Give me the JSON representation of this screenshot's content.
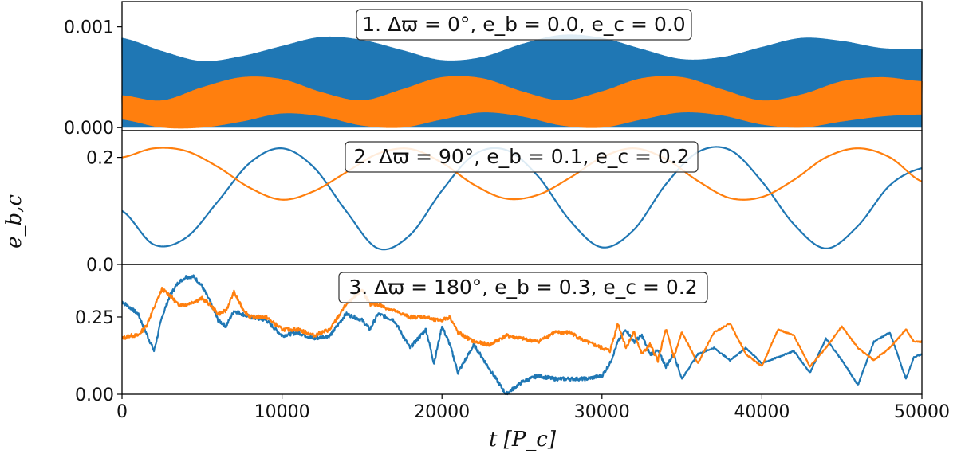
{
  "chart_data": {
    "type": "line",
    "xlabel": "t [P_c]",
    "ylabel": "e_b,c",
    "xlim": [
      0,
      50000
    ],
    "xticks": [
      "0",
      "10000",
      "20000",
      "30000",
      "40000",
      "50000"
    ],
    "series_colors": {
      "b": "#1f77b4",
      "c": "#ff7f0e"
    },
    "panels": [
      {
        "id": 1,
        "annotation": "1. Δϖ = 0°, e_b = 0.0, e_c = 0.0",
        "ylim": [
          -3e-05,
          0.00125
        ],
        "yticks": [
          {
            "value": 0.0,
            "label": "0.000"
          },
          {
            "value": 0.001,
            "label": "0.001"
          }
        ],
        "style": "band",
        "series": [
          {
            "key": "b",
            "color": "#1f77b4",
            "x": [
              0,
              2500,
              5000,
              7500,
              10000,
              12500,
              15000,
              17500,
              20000,
              22500,
              25000,
              27500,
              30000,
              32500,
              35000,
              37500,
              40000,
              42500,
              45000,
              47500,
              50000
            ],
            "upper": [
              0.00089,
              0.00076,
              0.00066,
              0.00071,
              0.00081,
              0.0009,
              0.00087,
              0.00077,
              0.00067,
              0.0007,
              0.00083,
              0.00092,
              0.00089,
              0.00078,
              0.00068,
              0.0007,
              0.0008,
              0.00089,
              0.00086,
              0.00079,
              0.00078
            ],
            "lower": [
              0.0,
              0.0,
              0.0,
              0.0,
              0.0,
              0.0,
              0.0,
              0.0,
              0.0,
              0.0,
              0.0,
              0.0,
              0.0,
              0.0,
              0.0,
              0.0,
              0.0,
              0.0,
              0.0,
              0.0,
              0.0
            ]
          },
          {
            "key": "c",
            "color": "#ff7f0e",
            "x": [
              0,
              2500,
              5000,
              7500,
              10000,
              12500,
              15000,
              17500,
              20000,
              22500,
              25000,
              27500,
              30000,
              32500,
              35000,
              37500,
              40000,
              42500,
              45000,
              47500,
              50000
            ],
            "upper": [
              0.00032,
              0.00027,
              0.0004,
              0.0005,
              0.00048,
              0.00035,
              0.00027,
              0.00038,
              0.0005,
              0.00049,
              0.00036,
              0.00027,
              0.00036,
              0.00049,
              0.0005,
              0.00038,
              0.00027,
              0.00033,
              0.00046,
              0.0005,
              0.00046
            ],
            "lower": [
              8e-05,
              0.0,
              0.0,
              6e-05,
              0.00014,
              0.00011,
              2e-05,
              0.0,
              8e-05,
              0.00015,
              0.00011,
              2e-05,
              0.0,
              8e-05,
              0.00015,
              0.00012,
              3e-05,
              0.0,
              6e-05,
              0.00011,
              0.00013
            ]
          }
        ]
      },
      {
        "id": 2,
        "annotation": "2. Δϖ = 90°, e_b = 0.1, e_c = 0.2",
        "ylim": [
          0.0,
          0.25
        ],
        "yticks": [
          {
            "value": 0.0,
            "label": "0.0"
          },
          {
            "value": 0.2,
            "label": "0.2"
          }
        ],
        "style": "line",
        "series": [
          {
            "key": "b",
            "color": "#1f77b4",
            "x": [
              0,
              2000,
              4000,
              6000,
              8000,
              10000,
              12000,
              14000,
              16000,
              18000,
              20000,
              22000,
              24000,
              26000,
              28000,
              30000,
              32000,
              34000,
              36000,
              38000,
              40000,
              42000,
              44000,
              46000,
              48000,
              50000
            ],
            "y": [
              0.1,
              0.037,
              0.05,
              0.118,
              0.19,
              0.217,
              0.181,
              0.1,
              0.03,
              0.055,
              0.138,
              0.205,
              0.214,
              0.165,
              0.082,
              0.032,
              0.065,
              0.15,
              0.21,
              0.214,
              0.155,
              0.075,
              0.03,
              0.072,
              0.148,
              0.18
            ],
            "minima_t": [
              2300,
              16700,
              31000,
              45400
            ]
          },
          {
            "key": "c",
            "color": "#ff7f0e",
            "x": [
              0,
              2000,
              4000,
              6000,
              8000,
              10000,
              12000,
              14000,
              16000,
              18000,
              20000,
              22000,
              24000,
              26000,
              28000,
              30000,
              32000,
              34000,
              36000,
              38000,
              40000,
              42000,
              44000,
              46000,
              48000,
              50000
            ],
            "y": [
              0.2,
              0.217,
              0.212,
              0.182,
              0.143,
              0.121,
              0.137,
              0.172,
              0.207,
              0.216,
              0.19,
              0.149,
              0.123,
              0.13,
              0.162,
              0.2,
              0.217,
              0.197,
              0.156,
              0.124,
              0.126,
              0.158,
              0.2,
              0.217,
              0.2,
              0.155
            ]
          }
        ]
      },
      {
        "id": 3,
        "annotation": "3. Δϖ = 180°, e_b = 0.3, e_c = 0.2",
        "ylim": [
          0.0,
          0.42
        ],
        "yticks": [
          {
            "value": 0.0,
            "label": "0.00"
          },
          {
            "value": 0.25,
            "label": "0.25"
          }
        ],
        "style": "line",
        "series": [
          {
            "key": "b",
            "color": "#1f77b4",
            "x": [
              0,
              500,
              1000,
              1500,
              2000,
              2500,
              3000,
              3500,
              4000,
              4500,
              5000,
              5500,
              6000,
              6500,
              7000,
              7500,
              8000,
              9000,
              10000,
              11000,
              12000,
              13000,
              14000,
              14500,
              15000,
              15500,
              16000,
              17000,
              18000,
              19000,
              19500,
              20000,
              20500,
              21000,
              22000,
              23000,
              24000,
              25000,
              26000,
              27000,
              28000,
              29000,
              30000,
              30500,
              31000,
              31500,
              32000,
              32500,
              33000,
              33500,
              34000,
              34500,
              35000,
              36000,
              37000,
              38000,
              39000,
              40000,
              41000,
              42000,
              43000,
              44000,
              45000,
              46000,
              47000,
              48000,
              49000,
              49500,
              50000
            ],
            "y": [
              0.3,
              0.28,
              0.26,
              0.2,
              0.14,
              0.25,
              0.32,
              0.36,
              0.38,
              0.38,
              0.35,
              0.3,
              0.24,
              0.22,
              0.27,
              0.26,
              0.25,
              0.24,
              0.19,
              0.2,
              0.18,
              0.19,
              0.26,
              0.25,
              0.24,
              0.21,
              0.26,
              0.24,
              0.15,
              0.21,
              0.1,
              0.22,
              0.16,
              0.07,
              0.16,
              0.08,
              0.0,
              0.04,
              0.06,
              0.05,
              0.05,
              0.05,
              0.06,
              0.1,
              0.17,
              0.21,
              0.17,
              0.19,
              0.13,
              0.14,
              0.09,
              0.13,
              0.05,
              0.13,
              0.15,
              0.11,
              0.15,
              0.1,
              0.12,
              0.14,
              0.07,
              0.18,
              0.11,
              0.03,
              0.17,
              0.2,
              0.05,
              0.12,
              0.13
            ]
          },
          {
            "key": "c",
            "color": "#ff7f0e",
            "x": [
              0,
              500,
              1000,
              1500,
              2000,
              2500,
              3000,
              3500,
              4000,
              4500,
              5000,
              5500,
              6000,
              6500,
              7000,
              7500,
              8000,
              9000,
              10000,
              11000,
              12000,
              13000,
              14000,
              14500,
              15000,
              15500,
              16000,
              17000,
              18000,
              19000,
              19500,
              20000,
              20500,
              21000,
              22000,
              23000,
              24000,
              25000,
              26000,
              27000,
              28000,
              29000,
              30000,
              30500,
              31000,
              31500,
              32000,
              32500,
              33000,
              33500,
              34000,
              34500,
              35000,
              36000,
              37000,
              38000,
              39000,
              40000,
              41000,
              42000,
              43000,
              44000,
              45000,
              46000,
              47000,
              48000,
              49000,
              49500,
              50000
            ],
            "y": [
              0.18,
              0.19,
              0.19,
              0.22,
              0.28,
              0.34,
              0.32,
              0.29,
              0.29,
              0.3,
              0.31,
              0.29,
              0.26,
              0.27,
              0.33,
              0.28,
              0.25,
              0.25,
              0.21,
              0.21,
              0.19,
              0.21,
              0.29,
              0.31,
              0.34,
              0.29,
              0.29,
              0.27,
              0.25,
              0.25,
              0.24,
              0.24,
              0.25,
              0.2,
              0.17,
              0.16,
              0.19,
              0.18,
              0.17,
              0.2,
              0.2,
              0.17,
              0.15,
              0.14,
              0.23,
              0.15,
              0.2,
              0.13,
              0.16,
              0.11,
              0.21,
              0.12,
              0.2,
              0.1,
              0.2,
              0.23,
              0.13,
              0.09,
              0.21,
              0.19,
              0.09,
              0.15,
              0.22,
              0.15,
              0.11,
              0.15,
              0.21,
              0.17,
              0.17
            ]
          }
        ]
      }
    ]
  }
}
